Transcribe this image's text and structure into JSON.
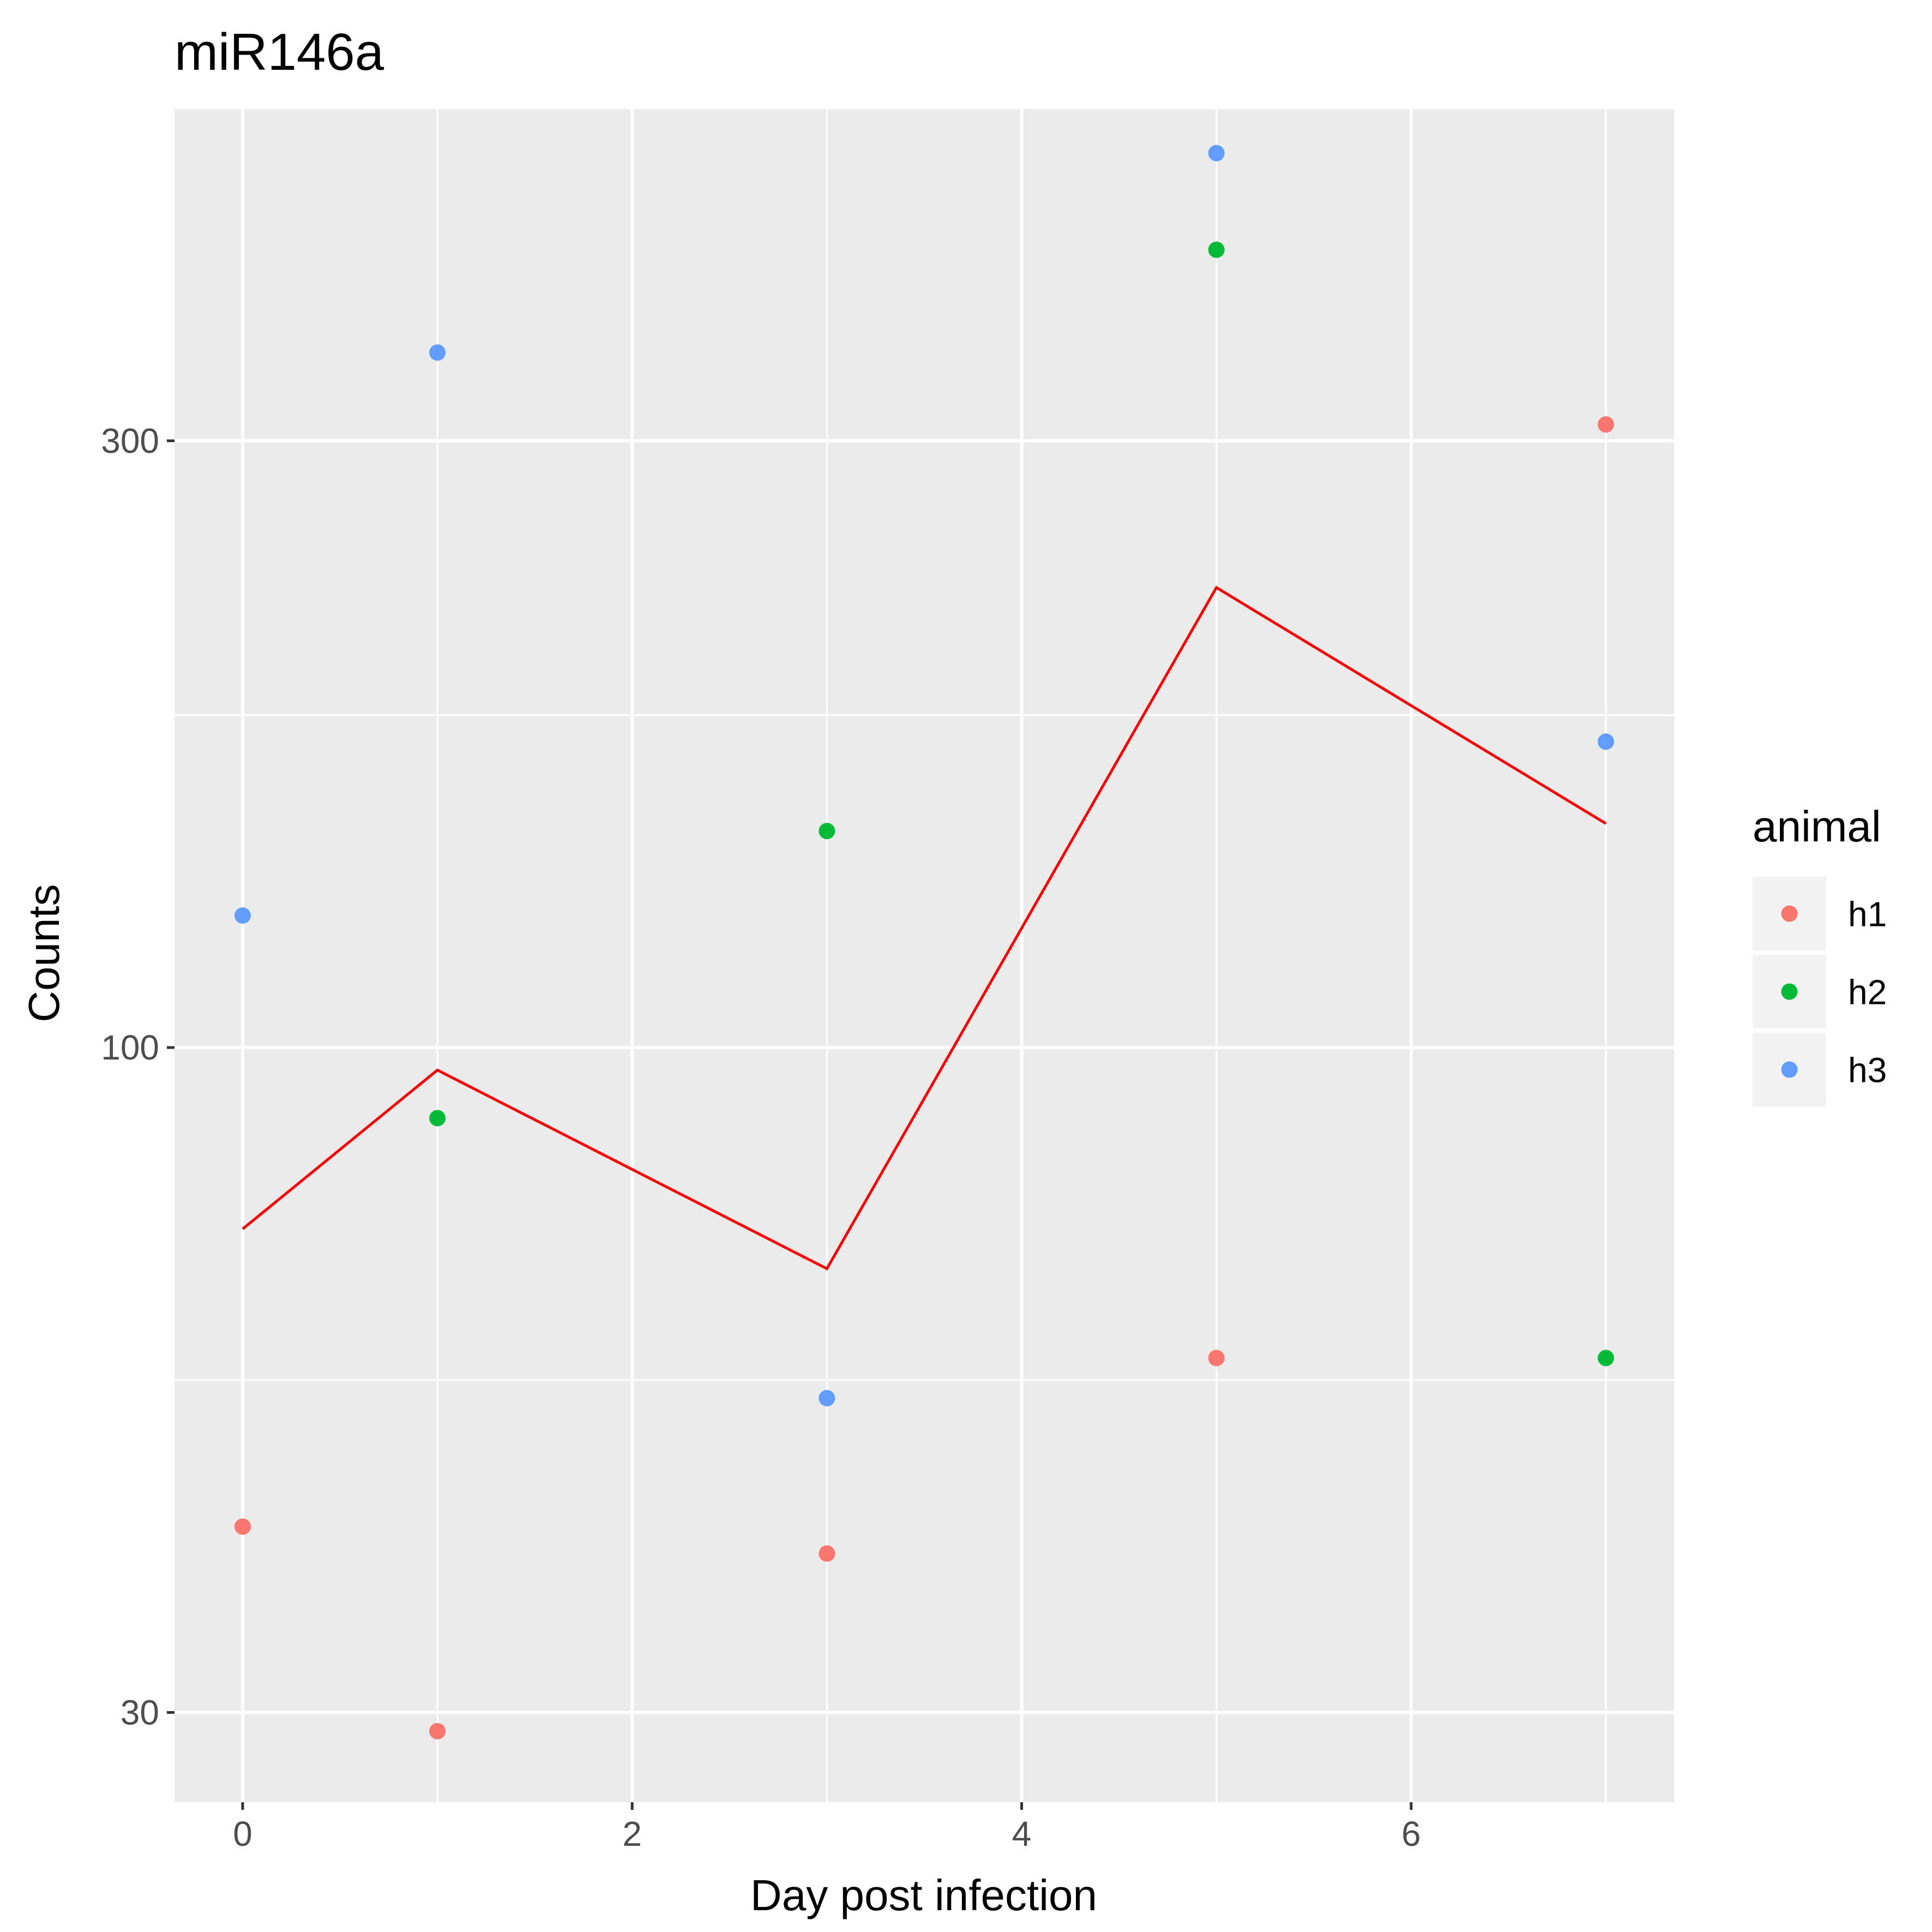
{
  "chart_data": {
    "type": "scatter",
    "title": "miR146a",
    "xlabel": "Day post infection",
    "ylabel": "Counts",
    "y_scale": "log10",
    "xlim": [
      -0.35,
      7.35
    ],
    "ylim": [
      25.5,
      547
    ],
    "x_ticks": [
      0,
      2,
      4,
      6
    ],
    "x_tick_labels": [
      "0",
      "2",
      "4",
      "6"
    ],
    "y_ticks": [
      30,
      100,
      300
    ],
    "y_tick_labels": [
      "30",
      "100",
      "300"
    ],
    "grid": true,
    "legend": {
      "title": "animal",
      "position": "right"
    },
    "colors": {
      "h1": "#F8766D",
      "h2": "#00BA38",
      "h3": "#619CFF",
      "line": "#FF0000"
    },
    "series": [
      {
        "name": "h1",
        "x": [
          0,
          1,
          3,
          5,
          7
        ],
        "y": [
          42,
          29,
          40,
          57,
          309
        ]
      },
      {
        "name": "h2",
        "x": [
          1,
          3,
          5,
          7
        ],
        "y": [
          88,
          148,
          424,
          57
        ]
      },
      {
        "name": "h3",
        "x": [
          0,
          1,
          3,
          5,
          7
        ],
        "y": [
          127,
          352,
          53,
          505,
          174
        ]
      }
    ],
    "mean_line": {
      "x": [
        0,
        1,
        3,
        5,
        7
      ],
      "y": [
        72,
        96,
        67,
        230,
        150
      ]
    }
  }
}
